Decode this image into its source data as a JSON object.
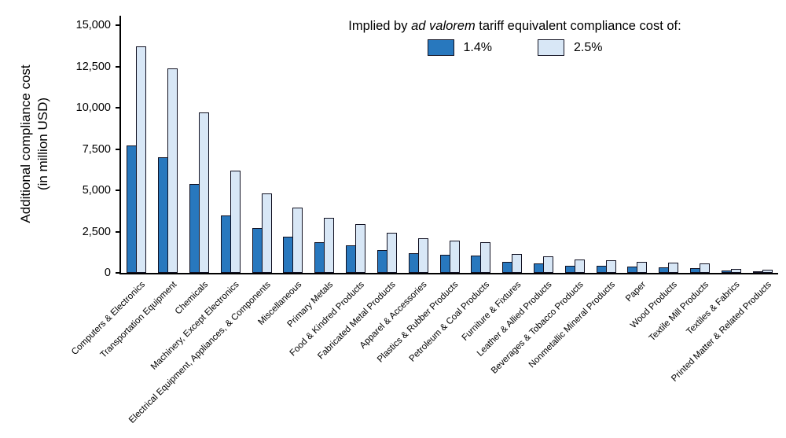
{
  "chart_data": {
    "type": "bar",
    "title": "",
    "legend_title_prefix": "Implied by ",
    "legend_title_italic": "ad valorem",
    "legend_title_suffix": " tariff equivalent compliance cost of:",
    "ylabel_line1": "Additional compliance cost",
    "ylabel_line2": "(in million USD)",
    "ylim": [
      0,
      15000
    ],
    "grid": false,
    "legend_position": "top-center",
    "yticks": [
      0,
      2500,
      5000,
      7500,
      10000,
      12500,
      15000
    ],
    "ytick_labels": [
      "0",
      "2,500",
      "5,000",
      "7,500",
      "10,000",
      "12,500",
      "15,000"
    ],
    "categories": [
      "Computers & Electronics",
      "Transportation Equipment",
      "Chemicals",
      "Machinery, Except Electronics",
      "Electrical Equipment, Appliances, & Components",
      "Miscellaneous",
      "Primary Metals",
      "Food & Kindred Products",
      "Fabricated Metal Products",
      "Apparel & Accessories",
      "Plastics & Rubber Products",
      "Petroleum & Coal Products",
      "Furniture & Fixtures",
      "Leather & Allied Products",
      "Beverages & Tobacco Products",
      "Nonmetallic Mineral Products",
      "Paper",
      "Wood Products",
      "Textile Mill Products",
      "Textiles & Fabrics",
      "Printed Matter & Related Products"
    ],
    "series": [
      {
        "name": "1.4%",
        "color": "#2878be",
        "values": [
          7700,
          7000,
          5400,
          3500,
          2700,
          2200,
          1850,
          1650,
          1400,
          1200,
          1100,
          1050,
          650,
          550,
          450,
          420,
          380,
          340,
          310,
          130,
          90
        ]
      },
      {
        "name": "2.5%",
        "color": "#d8e7f6",
        "values": [
          13700,
          12400,
          9700,
          6200,
          4800,
          3950,
          3350,
          2950,
          2450,
          2100,
          1950,
          1850,
          1150,
          1000,
          800,
          760,
          680,
          620,
          560,
          240,
          170
        ]
      }
    ],
    "bar_border_color": "#111122",
    "axis_color": "#000000"
  }
}
